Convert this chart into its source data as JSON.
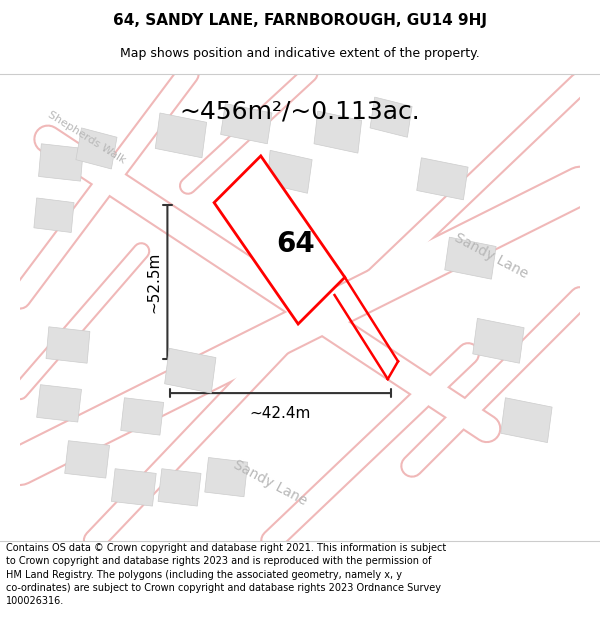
{
  "title_line1": "64, SANDY LANE, FARNBOROUGH, GU14 9HJ",
  "title_line2": "Map shows position and indicative extent of the property.",
  "area_text": "~456m²/~0.113ac.",
  "label_64": "64",
  "dim_width": "~42.4m",
  "dim_height": "~52.5m",
  "footer_wrapped": "Contains OS data © Crown copyright and database right 2021. This information is subject\nto Crown copyright and database rights 2023 and is reproduced with the permission of\nHM Land Registry. The polygons (including the associated geometry, namely x, y\nco-ordinates) are subject to Crown copyright and database rights 2023 Ordnance Survey\n100026316.",
  "bg_color": "#f5f5f5",
  "map_bg": "#f2f2f2",
  "road_color": "#ffffff",
  "road_outline_color": "#f0b8b8",
  "building_color": "#e0e0e0",
  "building_outline": "#cccccc",
  "property_fill": "#ffffff",
  "property_outline": "#ff0000",
  "dim_line_color": "#333333",
  "street_text_color": "#b8b8b8",
  "title_fontsize": 11,
  "subtitle_fontsize": 9,
  "area_fontsize": 18,
  "label_fontsize": 20,
  "dim_fontsize": 11,
  "street_fontsize": 10,
  "footer_fontsize": 7
}
